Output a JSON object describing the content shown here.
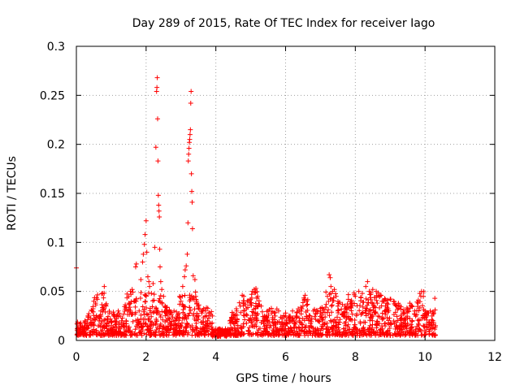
{
  "chart_data": {
    "type": "scatter",
    "title": "Day 289 of 2015, Rate Of TEC Index for receiver Iago",
    "xlabel": "GPS time / hours",
    "ylabel": "ROTI / TECUs",
    "xlim": [
      0,
      12
    ],
    "ylim": [
      0,
      0.3
    ],
    "xticks": [
      0,
      2,
      4,
      6,
      8,
      10,
      12
    ],
    "xtick_labels": [
      "0",
      "2",
      "4",
      "6",
      "8",
      "10",
      "12"
    ],
    "yticks": [
      0,
      0.05,
      0.1,
      0.15,
      0.2,
      0.25,
      0.3
    ],
    "ytick_labels": [
      "0",
      "0.05",
      "0.1",
      "0.15",
      "0.2",
      "0.25",
      "0.3"
    ],
    "grid": true,
    "marker": "plus",
    "color": "#ff0000",
    "x_extent": [
      0,
      10.3
    ],
    "series": [
      {
        "name": "ROTI",
        "points": [
          [
            0.0,
            0.074
          ],
          [
            0.02,
            0.017
          ],
          [
            0.05,
            0.012
          ],
          [
            0.08,
            0.008
          ],
          [
            0.12,
            0.015
          ],
          [
            0.18,
            0.01
          ],
          [
            0.25,
            0.02
          ],
          [
            0.3,
            0.012
          ],
          [
            0.35,
            0.025
          ],
          [
            0.4,
            0.018
          ],
          [
            0.45,
            0.03
          ],
          [
            0.5,
            0.04
          ],
          [
            0.55,
            0.038
          ],
          [
            0.6,
            0.042
          ],
          [
            0.65,
            0.02
          ],
          [
            0.7,
            0.03
          ],
          [
            0.75,
            0.048
          ],
          [
            0.8,
            0.055
          ],
          [
            0.85,
            0.035
          ],
          [
            0.9,
            0.022
          ],
          [
            0.95,
            0.028
          ],
          [
            1.0,
            0.015
          ],
          [
            1.1,
            0.025
          ],
          [
            1.2,
            0.03
          ],
          [
            1.3,
            0.02
          ],
          [
            1.4,
            0.032
          ],
          [
            1.5,
            0.045
          ],
          [
            1.55,
            0.05
          ],
          [
            1.6,
            0.052
          ],
          [
            1.65,
            0.04
          ],
          [
            1.7,
            0.075
          ],
          [
            1.72,
            0.078
          ],
          [
            1.8,
            0.03
          ],
          [
            1.85,
            0.062
          ],
          [
            1.9,
            0.08
          ],
          [
            1.92,
            0.088
          ],
          [
            1.95,
            0.098
          ],
          [
            1.97,
            0.108
          ],
          [
            2.0,
            0.122
          ],
          [
            2.02,
            0.09
          ],
          [
            2.05,
            0.065
          ],
          [
            2.08,
            0.06
          ],
          [
            2.1,
            0.055
          ],
          [
            2.15,
            0.048
          ],
          [
            2.2,
            0.058
          ],
          [
            2.25,
            0.095
          ],
          [
            2.28,
            0.197
          ],
          [
            2.3,
            0.254
          ],
          [
            2.31,
            0.258
          ],
          [
            2.32,
            0.268
          ],
          [
            2.33,
            0.226
          ],
          [
            2.34,
            0.183
          ],
          [
            2.35,
            0.148
          ],
          [
            2.36,
            0.138
          ],
          [
            2.37,
            0.132
          ],
          [
            2.38,
            0.126
          ],
          [
            2.39,
            0.093
          ],
          [
            2.4,
            0.075
          ],
          [
            2.42,
            0.06
          ],
          [
            2.45,
            0.052
          ],
          [
            2.5,
            0.045
          ],
          [
            2.55,
            0.035
          ],
          [
            2.6,
            0.03
          ],
          [
            2.7,
            0.028
          ],
          [
            2.8,
            0.03
          ],
          [
            2.9,
            0.025
          ],
          [
            3.0,
            0.04
          ],
          [
            3.05,
            0.055
          ],
          [
            3.1,
            0.065
          ],
          [
            3.12,
            0.072
          ],
          [
            3.15,
            0.076
          ],
          [
            3.18,
            0.088
          ],
          [
            3.2,
            0.12
          ],
          [
            3.21,
            0.183
          ],
          [
            3.22,
            0.19
          ],
          [
            3.23,
            0.196
          ],
          [
            3.24,
            0.202
          ],
          [
            3.25,
            0.205
          ],
          [
            3.26,
            0.21
          ],
          [
            3.27,
            0.215
          ],
          [
            3.28,
            0.242
          ],
          [
            3.29,
            0.254
          ],
          [
            3.3,
            0.17
          ],
          [
            3.31,
            0.152
          ],
          [
            3.32,
            0.141
          ],
          [
            3.33,
            0.114
          ],
          [
            3.35,
            0.066
          ],
          [
            3.4,
            0.062
          ],
          [
            3.45,
            0.04
          ],
          [
            3.5,
            0.033
          ],
          [
            3.6,
            0.028
          ],
          [
            3.7,
            0.03
          ],
          [
            3.8,
            0.028
          ],
          [
            3.9,
            0.025
          ],
          [
            4.0,
            0.01
          ],
          [
            4.1,
            0.012
          ],
          [
            4.2,
            0.008
          ],
          [
            4.3,
            0.01
          ],
          [
            4.4,
            0.02
          ],
          [
            4.5,
            0.025
          ],
          [
            4.6,
            0.03
          ],
          [
            4.7,
            0.035
          ],
          [
            4.8,
            0.045
          ],
          [
            4.9,
            0.04
          ],
          [
            5.0,
            0.038
          ],
          [
            5.05,
            0.05
          ],
          [
            5.1,
            0.052
          ],
          [
            5.15,
            0.053
          ],
          [
            5.2,
            0.045
          ],
          [
            5.3,
            0.035
          ],
          [
            5.4,
            0.025
          ],
          [
            5.5,
            0.03
          ],
          [
            5.6,
            0.028
          ],
          [
            5.7,
            0.025
          ],
          [
            5.8,
            0.03
          ],
          [
            5.9,
            0.022
          ],
          [
            6.0,
            0.028
          ],
          [
            6.1,
            0.025
          ],
          [
            6.2,
            0.03
          ],
          [
            6.3,
            0.025
          ],
          [
            6.4,
            0.03
          ],
          [
            6.5,
            0.035
          ],
          [
            6.55,
            0.042
          ],
          [
            6.6,
            0.04
          ],
          [
            6.7,
            0.025
          ],
          [
            6.8,
            0.03
          ],
          [
            6.9,
            0.028
          ],
          [
            7.0,
            0.03
          ],
          [
            7.1,
            0.032
          ],
          [
            7.2,
            0.045
          ],
          [
            7.25,
            0.067
          ],
          [
            7.28,
            0.064
          ],
          [
            7.3,
            0.055
          ],
          [
            7.35,
            0.05
          ],
          [
            7.4,
            0.052
          ],
          [
            7.45,
            0.045
          ],
          [
            7.5,
            0.035
          ],
          [
            7.6,
            0.032
          ],
          [
            7.7,
            0.035
          ],
          [
            7.8,
            0.042
          ],
          [
            7.9,
            0.038
          ],
          [
            8.0,
            0.045
          ],
          [
            8.1,
            0.05
          ],
          [
            8.2,
            0.048
          ],
          [
            8.3,
            0.055
          ],
          [
            8.35,
            0.06
          ],
          [
            8.4,
            0.05
          ],
          [
            8.5,
            0.052
          ],
          [
            8.6,
            0.05
          ],
          [
            8.7,
            0.045
          ],
          [
            8.8,
            0.04
          ],
          [
            8.9,
            0.038
          ],
          [
            9.0,
            0.042
          ],
          [
            9.1,
            0.04
          ],
          [
            9.2,
            0.035
          ],
          [
            9.3,
            0.032
          ],
          [
            9.4,
            0.028
          ],
          [
            9.5,
            0.03
          ],
          [
            9.6,
            0.035
          ],
          [
            9.7,
            0.03
          ],
          [
            9.8,
            0.038
          ],
          [
            9.85,
            0.048
          ],
          [
            9.9,
            0.05
          ],
          [
            9.95,
            0.045
          ],
          [
            10.0,
            0.03
          ],
          [
            10.05,
            0.025
          ],
          [
            10.1,
            0.028
          ],
          [
            10.15,
            0.03
          ],
          [
            10.2,
            0.025
          ],
          [
            10.25,
            0.028
          ],
          [
            10.28,
            0.043
          ],
          [
            10.3,
            0.015
          ]
        ]
      }
    ]
  }
}
